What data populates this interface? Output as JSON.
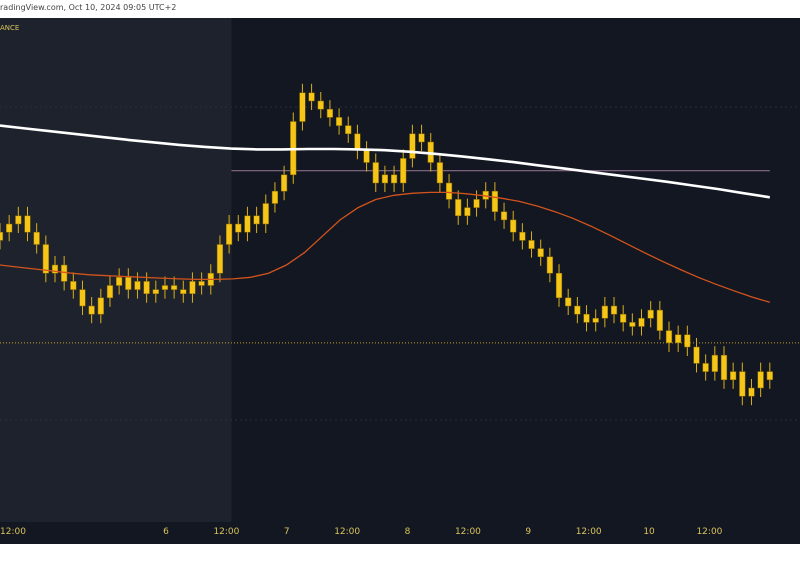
{
  "header": {
    "attribution": "radingView.com, Oct 10, 2024 09:05 UTC+2",
    "source_fragment": "ANCE"
  },
  "colors": {
    "background": "#131722",
    "session_shade": "#1e222d",
    "candle": "#f5c518",
    "wick": "#d9b01a",
    "ema_slow": "#ffffff",
    "ema_fast": "#d2541c",
    "level_line": "#8a6d8a",
    "dotted_level": "#c9a227",
    "axis_text": "#d9c45a",
    "grid": "#2a2e39"
  },
  "chart_data": {
    "type": "candlestick",
    "title": "",
    "xlabel": "",
    "ylabel": "",
    "x_ticks": [
      "12:00",
      "6",
      "12:00",
      "7",
      "12:00",
      "8",
      "12:00",
      "9",
      "12:00",
      "10",
      "12:00"
    ],
    "x_range_hours": [
      -9,
      150
    ],
    "y_range": [
      0,
      100
    ],
    "grid": false,
    "legend": "none",
    "session_shade_hours": [
      -9,
      37
    ],
    "close_series": [
      58,
      60,
      62,
      58,
      55,
      48,
      50,
      46,
      44,
      40,
      38,
      42,
      45,
      47,
      44,
      46,
      43,
      44,
      45,
      44,
      43,
      46,
      45,
      48,
      55,
      60,
      58,
      62,
      60,
      65,
      68,
      72,
      85,
      92,
      90,
      88,
      86,
      84,
      82,
      78,
      75,
      70,
      72,
      70,
      76,
      82,
      80,
      75,
      70,
      66,
      62,
      64,
      66,
      68,
      63,
      61,
      58,
      56,
      54,
      52,
      48,
      42,
      40,
      38,
      36,
      37,
      40,
      38,
      36,
      35,
      37,
      39,
      34,
      31,
      33,
      30,
      26,
      24,
      28,
      22,
      24,
      18,
      20,
      24,
      22
    ],
    "ema_fast": [
      50,
      49.5,
      49,
      48.5,
      48,
      47.6,
      47.4,
      47.2,
      47,
      46.8,
      46.6,
      46.5,
      46.5,
      46.6,
      47,
      48,
      50,
      53,
      57,
      61,
      64,
      66,
      67,
      67.5,
      67.7,
      67.7,
      67.4,
      66.9,
      66.3,
      65.5,
      64.4,
      63,
      61.4,
      59.5,
      57.4,
      55.2,
      53,
      50.9,
      48.9,
      47,
      45.3,
      43.7,
      42.2,
      40.9
    ],
    "ema_slow": [
      84,
      83.3,
      82.6,
      81.9,
      81.2,
      80.5,
      79.9,
      79.3,
      78.8,
      78.4,
      78.2,
      78.2,
      78.3,
      78.3,
      78.2,
      78,
      77.6,
      77.1,
      76.5,
      75.8,
      75.1,
      74.3,
      73.5,
      72.7,
      71.9,
      71.1,
      70.3,
      69.4,
      68.5,
      67.5,
      66.5
    ],
    "annotations": [
      {
        "type": "hline",
        "y": 73,
        "x_start_hours": 37,
        "x_end_hours": 144,
        "style": "solid"
      },
      {
        "type": "hline",
        "y": 31,
        "x_start_hours": -9,
        "x_end_hours": 150,
        "style": "dotted"
      }
    ]
  }
}
